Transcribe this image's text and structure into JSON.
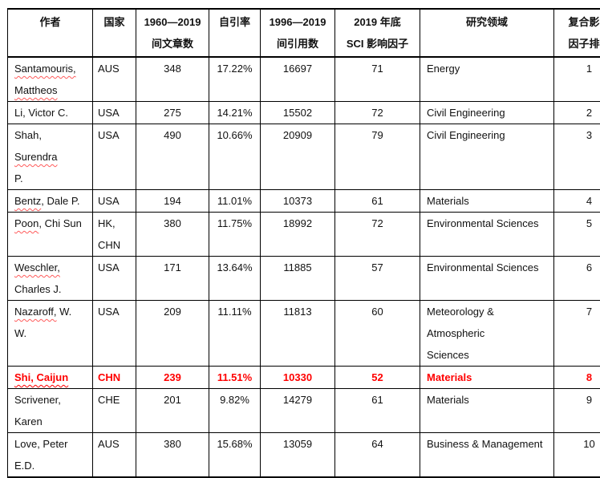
{
  "page": {
    "background": "#ffffff"
  },
  "table": {
    "name": "author-ranking-table",
    "border_color": "#000000",
    "text_color": "#111111",
    "highlight_color": "#ff0000",
    "columns": [
      {
        "key": "author",
        "label": "作者"
      },
      {
        "key": "country",
        "label": "国家"
      },
      {
        "key": "articles",
        "label": "1960—2019\n间文章数"
      },
      {
        "key": "self_citation_rate",
        "label": "自引率"
      },
      {
        "key": "citations",
        "label": "1996—2019\n间引用数"
      },
      {
        "key": "sci_impact_factor",
        "label": "2019 年底\nSCI 影响因子"
      },
      {
        "key": "research_field",
        "label": "研究领域"
      },
      {
        "key": "rank",
        "label": "复合影响\n因子排名"
      }
    ],
    "rows": [
      {
        "author": [
          {
            "text": "Santamouris,\nMattheos",
            "wavy": true
          }
        ],
        "country": "AUS",
        "articles": "348",
        "self_citation_rate": "17.22%",
        "citations": "16697",
        "sci_impact_factor": "71",
        "research_field": "Energy",
        "rank": "1",
        "highlight": false
      },
      {
        "author": [
          {
            "text": "Li, Victor C.",
            "wavy": false
          }
        ],
        "country": "USA",
        "articles": "275",
        "self_citation_rate": "14.21%",
        "citations": "15502",
        "sci_impact_factor": "72",
        "research_field": "Civil Engineering",
        "rank": "2",
        "highlight": false
      },
      {
        "author": [
          {
            "text": "Shah, ",
            "wavy": false
          },
          {
            "text": "Surendra",
            "wavy": true
          },
          {
            "text": "\nP.",
            "wavy": false
          }
        ],
        "country": "USA",
        "articles": "490",
        "self_citation_rate": "10.66%",
        "citations": "20909",
        "sci_impact_factor": "79",
        "research_field": "Civil Engineering",
        "rank": "3",
        "highlight": false
      },
      {
        "author": [
          {
            "text": "Bentz",
            "wavy": true
          },
          {
            "text": ", Dale P.",
            "wavy": false
          }
        ],
        "country": "USA",
        "articles": "194",
        "self_citation_rate": "11.01%",
        "citations": "10373",
        "sci_impact_factor": "61",
        "research_field": "Materials",
        "rank": "4",
        "highlight": false
      },
      {
        "author": [
          {
            "text": "Poon",
            "wavy": true
          },
          {
            "text": ", Chi Sun",
            "wavy": false
          }
        ],
        "country": "HK,\nCHN",
        "articles": "380",
        "self_citation_rate": "11.75%",
        "citations": "18992",
        "sci_impact_factor": "72",
        "research_field": "Environmental Sciences",
        "rank": "5",
        "highlight": false
      },
      {
        "author": [
          {
            "text": "Weschler,",
            "wavy": true
          },
          {
            "text": "\nCharles J.",
            "wavy": false
          }
        ],
        "country": "USA",
        "articles": "171",
        "self_citation_rate": "13.64%",
        "citations": "11885",
        "sci_impact_factor": "57",
        "research_field": "Environmental Sciences",
        "rank": "6",
        "highlight": false
      },
      {
        "author": [
          {
            "text": "Nazaroff,",
            "wavy": true
          },
          {
            "text": " W.\nW.",
            "wavy": false
          }
        ],
        "country": "USA",
        "articles": "209",
        "self_citation_rate": "11.11%",
        "citations": "11813",
        "sci_impact_factor": "60",
        "research_field": "Meteorology & Atmospheric\nSciences",
        "rank": "7",
        "highlight": false
      },
      {
        "author": [
          {
            "text": "Shi, Caijun",
            "wavy": true
          }
        ],
        "country": "CHN",
        "articles": "239",
        "self_citation_rate": "11.51%",
        "citations": "10330",
        "sci_impact_factor": "52",
        "research_field": "Materials",
        "rank": "8",
        "highlight": true
      },
      {
        "author": [
          {
            "text": "Scrivener,\nKaren",
            "wavy": false
          }
        ],
        "country": "CHE",
        "articles": "201",
        "self_citation_rate": "9.82%",
        "citations": "14279",
        "sci_impact_factor": "61",
        "research_field": "Materials",
        "rank": "9",
        "highlight": false
      },
      {
        "author": [
          {
            "text": "Love, Peter\nE.D.",
            "wavy": false
          }
        ],
        "country": "AUS",
        "articles": "380",
        "self_citation_rate": "15.68%",
        "citations": "13059",
        "sci_impact_factor": "64",
        "research_field": "Business & Management",
        "rank": "10",
        "highlight": false
      }
    ]
  }
}
